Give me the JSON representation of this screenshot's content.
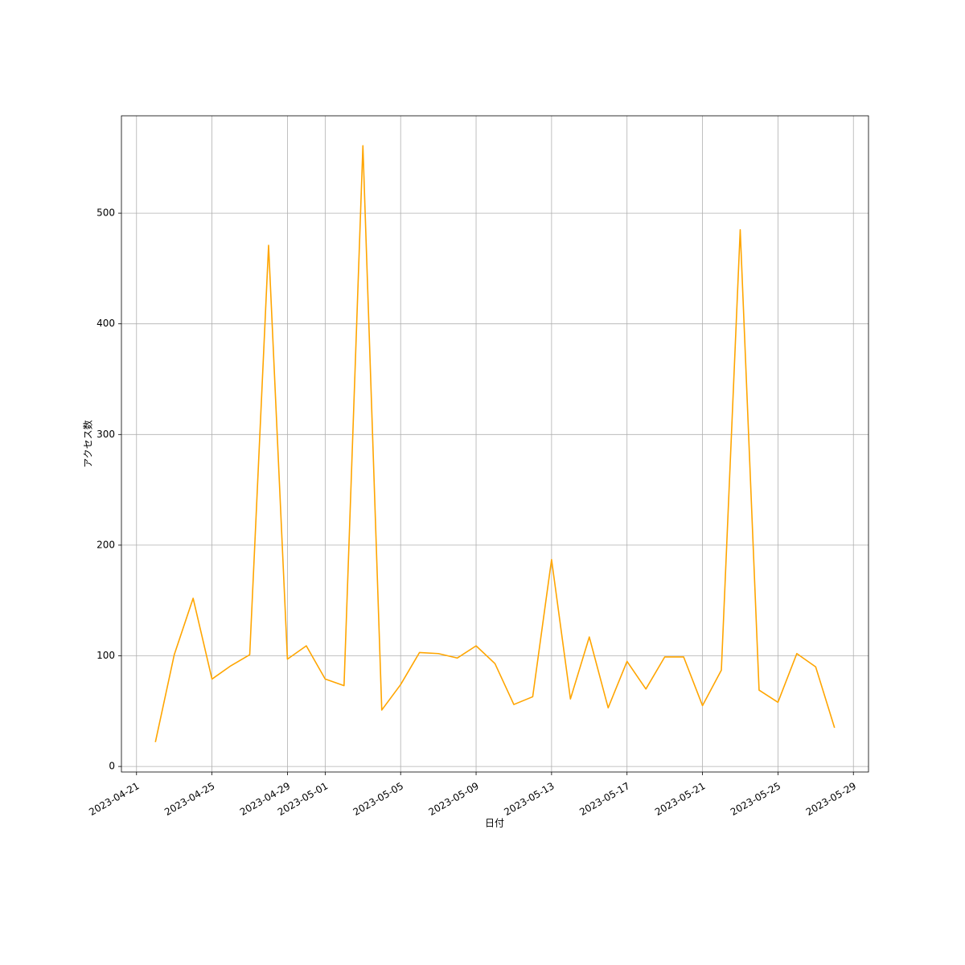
{
  "chart_data": {
    "type": "line",
    "xlabel": "日付",
    "ylabel": "アクセス数",
    "x": [
      "2023-04-22",
      "2023-04-23",
      "2023-04-24",
      "2023-04-25",
      "2023-04-26",
      "2023-04-27",
      "2023-04-28",
      "2023-04-29",
      "2023-04-30",
      "2023-05-01",
      "2023-05-02",
      "2023-05-03",
      "2023-05-04",
      "2023-05-05",
      "2023-05-06",
      "2023-05-07",
      "2023-05-08",
      "2023-05-09",
      "2023-05-10",
      "2023-05-11",
      "2023-05-12",
      "2023-05-13",
      "2023-05-14",
      "2023-05-15",
      "2023-05-16",
      "2023-05-17",
      "2023-05-18",
      "2023-05-19",
      "2023-05-20",
      "2023-05-21",
      "2023-05-22",
      "2023-05-23",
      "2023-05-24",
      "2023-05-25",
      "2023-05-26",
      "2023-05-27",
      "2023-05-28"
    ],
    "values": [
      22,
      101,
      152,
      79,
      91,
      101,
      471,
      97,
      109,
      79,
      73,
      561,
      51,
      74,
      103,
      102,
      98,
      109,
      93,
      56,
      63,
      187,
      61,
      117,
      53,
      95,
      70,
      99,
      99,
      55,
      87,
      485,
      69,
      58,
      102,
      90,
      35
    ],
    "color": "#ffa500",
    "xlim": [
      "2023-04-20T04:48",
      "2023-05-29T19:12"
    ],
    "xticks": [
      "2023-04-21",
      "2023-04-25",
      "2023-04-29",
      "2023-05-01",
      "2023-05-05",
      "2023-05-09",
      "2023-05-13",
      "2023-05-17",
      "2023-05-21",
      "2023-05-25",
      "2023-05-29"
    ],
    "ylim": [
      -5,
      588
    ],
    "yticks": [
      0,
      100,
      200,
      300,
      400,
      500
    ],
    "grid": true
  }
}
